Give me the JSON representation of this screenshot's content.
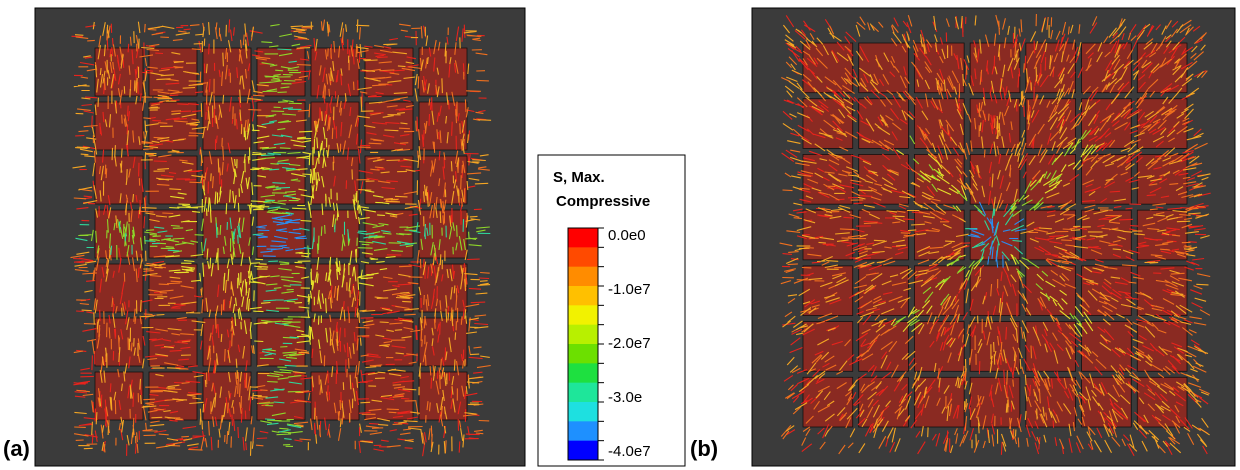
{
  "panels": [
    {
      "label": "(a)"
    },
    {
      "label": "(b)"
    }
  ],
  "legend": {
    "title": [
      "S, Max.",
      "Compressive"
    ],
    "labels": [
      "0.0e0",
      "-1.0e7",
      "-2.0e7",
      "-3.0e",
      "-4.0e7"
    ],
    "colors": [
      "#ff0000",
      "#ff4a00",
      "#ff8c00",
      "#ffc000",
      "#f2f200",
      "#b8f000",
      "#6ce000",
      "#1ee040",
      "#1ee69a",
      "#1ee0e0",
      "#1e90ff",
      "#0000ff"
    ]
  }
}
